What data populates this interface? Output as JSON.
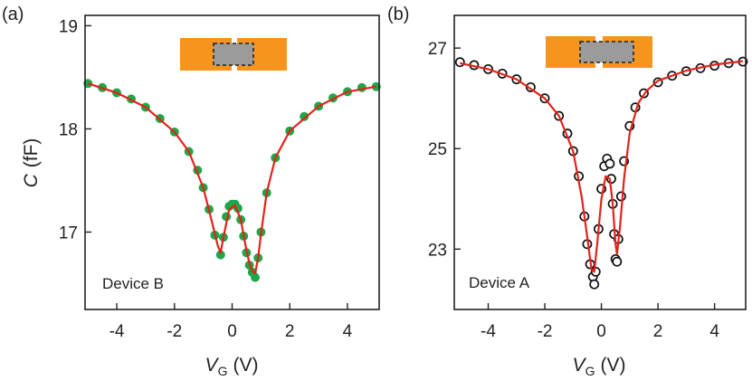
{
  "colors": {
    "green_marker": "#1fa64a",
    "fit_red": "#e2231a",
    "black_marker": "#111111",
    "contact_orange": "#f7941d",
    "channel_gray": "#9b9b9b",
    "axis": "#222222"
  },
  "chart_data": [
    {
      "panel": "(a)",
      "type": "scatter",
      "annotation": "Device B",
      "xlabel": "V",
      "xlabel_sub": "G",
      "xlabel_unit": "(V)",
      "ylabel": "C",
      "ylabel_unit": "(fF)",
      "xlim": [
        -5.1,
        5.1
      ],
      "ylim": [
        16.25,
        19.1
      ],
      "xticks": [
        -4,
        -2,
        0,
        2,
        4
      ],
      "xtick_labels": [
        "-4",
        "-2",
        "0",
        "2",
        "4"
      ],
      "yticks": [
        17,
        18,
        19
      ],
      "ytick_labels": [
        "17",
        "18",
        "19"
      ],
      "grid": false,
      "series": [
        {
          "kind": "markers",
          "marker": "filled-circle",
          "color": "#1fa64a",
          "x": [
            -5.0,
            -4.5,
            -4.0,
            -3.5,
            -3.0,
            -2.5,
            -2.0,
            -1.5,
            -1.2,
            -1.0,
            -0.8,
            -0.6,
            -0.4,
            -0.3,
            -0.2,
            -0.1,
            0.0,
            0.1,
            0.2,
            0.3,
            0.4,
            0.5,
            0.6,
            0.7,
            0.8,
            0.9,
            1.0,
            1.2,
            1.5,
            2.0,
            2.5,
            3.0,
            3.5,
            4.0,
            4.5,
            5.0
          ],
          "y": [
            18.44,
            18.4,
            18.35,
            18.29,
            18.21,
            18.1,
            17.97,
            17.78,
            17.6,
            17.43,
            17.22,
            16.97,
            16.78,
            16.95,
            17.15,
            17.25,
            17.27,
            17.27,
            17.23,
            17.12,
            16.96,
            16.8,
            16.68,
            16.61,
            16.56,
            16.75,
            17.0,
            17.38,
            17.72,
            17.98,
            18.12,
            18.22,
            18.3,
            18.36,
            18.4,
            18.41
          ]
        },
        {
          "kind": "fit",
          "color": "#e2231a",
          "x": [
            -5.0,
            -4.0,
            -3.0,
            -2.0,
            -1.5,
            -1.0,
            -0.7,
            -0.5,
            -0.4,
            -0.3,
            -0.1,
            0.1,
            0.3,
            0.5,
            0.6,
            0.7,
            0.8,
            0.9,
            1.0,
            1.2,
            1.5,
            2.0,
            3.0,
            4.0,
            5.0
          ],
          "y": [
            18.44,
            18.35,
            18.21,
            17.97,
            17.78,
            17.43,
            17.1,
            16.87,
            16.8,
            16.95,
            17.22,
            17.26,
            17.12,
            16.82,
            16.7,
            16.62,
            16.6,
            16.75,
            16.98,
            17.38,
            17.72,
            17.98,
            18.22,
            18.36,
            18.41
          ]
        }
      ]
    },
    {
      "panel": "(b)",
      "type": "scatter",
      "annotation": "Device A",
      "xlabel": "V",
      "xlabel_sub": "G",
      "xlabel_unit": "(V)",
      "xlim": [
        -5.2,
        5.1
      ],
      "ylim": [
        21.8,
        27.65
      ],
      "xticks": [
        -4,
        -2,
        0,
        2,
        4
      ],
      "xtick_labels": [
        "-4",
        "-2",
        "0",
        "2",
        "4"
      ],
      "yticks": [
        23,
        25,
        27
      ],
      "ytick_labels": [
        "23",
        "25",
        "27"
      ],
      "grid": false,
      "series": [
        {
          "kind": "markers",
          "marker": "open-circle",
          "color": "#111111",
          "x": [
            -5.0,
            -4.5,
            -4.0,
            -3.5,
            -3.0,
            -2.5,
            -2.0,
            -1.5,
            -1.2,
            -1.0,
            -0.8,
            -0.6,
            -0.5,
            -0.4,
            -0.3,
            -0.25,
            -0.2,
            -0.1,
            0.0,
            0.1,
            0.2,
            0.3,
            0.35,
            0.4,
            0.45,
            0.5,
            0.55,
            0.6,
            0.7,
            0.8,
            1.0,
            1.2,
            1.5,
            2.0,
            2.5,
            3.0,
            3.5,
            4.0,
            4.5,
            5.0
          ],
          "y": [
            26.72,
            26.66,
            26.58,
            26.49,
            26.38,
            26.22,
            26.0,
            25.65,
            25.3,
            24.95,
            24.45,
            23.65,
            23.1,
            22.7,
            22.45,
            22.3,
            22.55,
            23.4,
            24.2,
            24.65,
            24.8,
            24.7,
            24.4,
            23.9,
            23.3,
            22.8,
            22.75,
            23.2,
            24.05,
            24.75,
            25.45,
            25.82,
            26.1,
            26.32,
            26.45,
            26.54,
            26.6,
            26.65,
            26.7,
            26.73
          ]
        },
        {
          "kind": "fit",
          "color": "#e2231a",
          "x": [
            -5.0,
            -4.0,
            -3.0,
            -2.0,
            -1.5,
            -1.0,
            -0.7,
            -0.5,
            -0.35,
            -0.25,
            -0.15,
            0.0,
            0.15,
            0.3,
            0.4,
            0.5,
            0.55,
            0.65,
            0.8,
            1.0,
            1.3,
            1.6,
            2.0,
            3.0,
            4.0,
            5.0
          ],
          "y": [
            26.7,
            26.58,
            26.38,
            26.0,
            25.65,
            24.95,
            24.05,
            23.25,
            22.6,
            22.55,
            23.1,
            24.0,
            24.45,
            24.4,
            23.9,
            23.1,
            22.9,
            23.4,
            24.4,
            25.3,
            25.9,
            26.15,
            26.35,
            26.55,
            26.67,
            26.74
          ]
        }
      ]
    }
  ]
}
